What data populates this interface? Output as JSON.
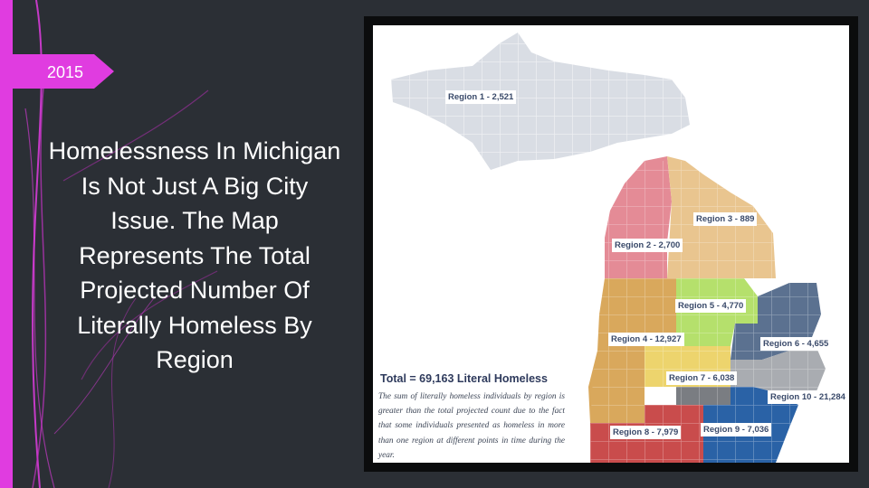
{
  "slide": {
    "year": "2015",
    "title": "Homelessness In Michigan Is Not Just A Big City Issue. The Map Represents The Total Projected Number Of Literally Homeless By Region",
    "accent_color": "#e03ce0",
    "background_color": "#2b2f35"
  },
  "map": {
    "total": "Total = 69,163 Literal Homeless",
    "note": "The sum of literally homeless individuals by region is greater than the total projected count due to the fact that some individuals presented as homeless in more than one region at different points in time during the year.",
    "regions": [
      {
        "label": "Region 1 - 2,521",
        "color": "#d9dde4"
      },
      {
        "label": "Region 2 - 2,700",
        "color": "#e48b96"
      },
      {
        "label": "Region 3 - 889",
        "color": "#e9c58f"
      },
      {
        "label": "Region 4 - 12,927",
        "color": "#d9a85c"
      },
      {
        "label": "Region 5 - 4,770",
        "color": "#b5e06c"
      },
      {
        "label": "Region 6 - 4,655",
        "color": "#5b7190"
      },
      {
        "label": "Region 7 - 6,038",
        "color": "#edd46d"
      },
      {
        "label": "Region 8 - 7,979",
        "color": "#c94c4c"
      },
      {
        "label": "Region 9 - 7,036",
        "color": "#2a62a6"
      },
      {
        "label": "Region 10 - 21,284",
        "color": "#a9acb1"
      }
    ]
  }
}
